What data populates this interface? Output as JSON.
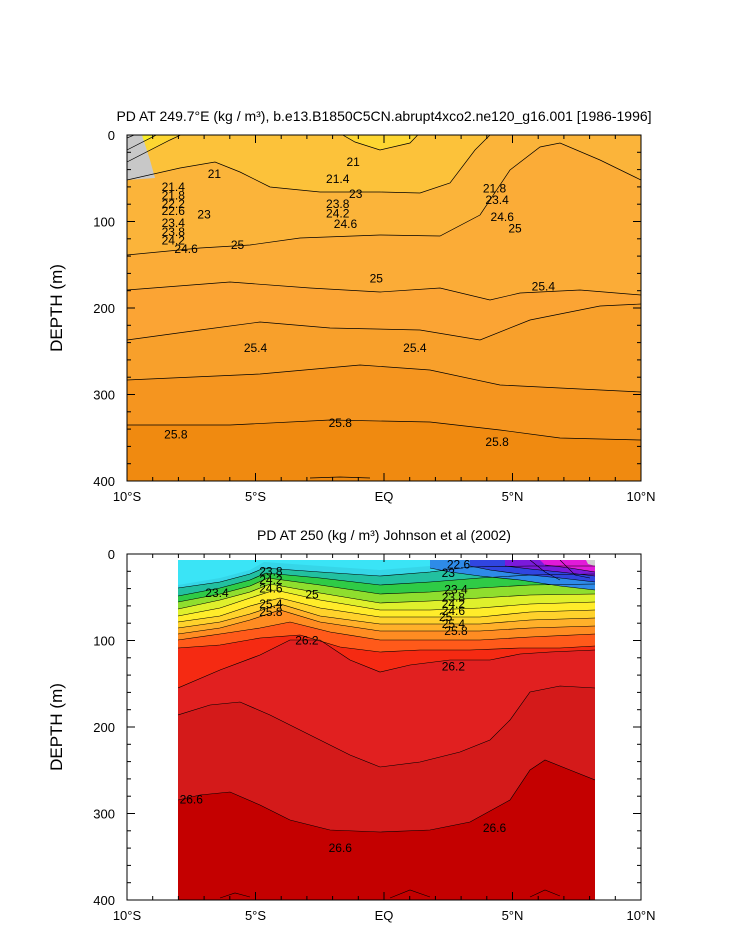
{
  "chart_data": [
    {
      "type": "contour",
      "title": "PD AT 249.7°E (kg / m³), b.e13.B1850C5CN.abrupt4xco2.ne120_g16.001 [1986-1996]",
      "xlabel": "",
      "ylabel": "DEPTH (m)",
      "xlim": [
        -10,
        10
      ],
      "ylim": [
        0,
        400
      ],
      "xticks": [
        -10,
        -5,
        0,
        5,
        10
      ],
      "xticklabels": [
        "10°S",
        "5°S",
        "EQ",
        "5°N",
        "10°N"
      ],
      "yticks": [
        0,
        100,
        200,
        300,
        400
      ],
      "yticklabels": [
        "0",
        "100",
        "200",
        "300",
        "400"
      ],
      "contour_levels": [
        21,
        21.4,
        21.8,
        22.2,
        22.6,
        23,
        23.4,
        23.8,
        24.2,
        24.6,
        25,
        25.4,
        25.8
      ],
      "contour_labels": [
        {
          "text": "21",
          "x": -6.6,
          "y": 45
        },
        {
          "text": "21",
          "x": -1.2,
          "y": 31
        },
        {
          "text": "21.4",
          "x": -8.2,
          "y": 60
        },
        {
          "text": "21.4",
          "x": -1.8,
          "y": 51
        },
        {
          "text": "21.8",
          "x": -8.2,
          "y": 70
        },
        {
          "text": "21.8",
          "x": 4.3,
          "y": 62
        },
        {
          "text": "22.2",
          "x": -8.2,
          "y": 80
        },
        {
          "text": "22.6",
          "x": -8.2,
          "y": 88
        },
        {
          "text": "23",
          "x": -7.0,
          "y": 92
        },
        {
          "text": "23",
          "x": -1.1,
          "y": 68
        },
        {
          "text": "23.4",
          "x": -8.2,
          "y": 102
        },
        {
          "text": "23.4",
          "x": 4.4,
          "y": 75
        },
        {
          "text": "23.8",
          "x": -8.2,
          "y": 112
        },
        {
          "text": "23.8",
          "x": -1.8,
          "y": 80
        },
        {
          "text": "24.2",
          "x": -8.2,
          "y": 122
        },
        {
          "text": "24.2",
          "x": -1.8,
          "y": 91
        },
        {
          "text": "24.6",
          "x": -7.7,
          "y": 132
        },
        {
          "text": "24.6",
          "x": -1.5,
          "y": 103
        },
        {
          "text": "24.6",
          "x": 4.6,
          "y": 95
        },
        {
          "text": "25",
          "x": -5.7,
          "y": 127
        },
        {
          "text": "25",
          "x": -0.3,
          "y": 166
        },
        {
          "text": "25",
          "x": 5.1,
          "y": 108
        },
        {
          "text": "25.4",
          "x": 6.2,
          "y": 175
        },
        {
          "text": "25.4",
          "x": -5.0,
          "y": 246
        },
        {
          "text": "25.4",
          "x": 1.2,
          "y": 246
        },
        {
          "text": "25.8",
          "x": -8.1,
          "y": 346
        },
        {
          "text": "25.8",
          "x": -1.7,
          "y": 333
        },
        {
          "text": "25.8",
          "x": 4.4,
          "y": 355
        }
      ]
    },
    {
      "type": "contour",
      "title": "PD AT 250 (kg / m³) Johnson et al (2002)",
      "xlabel": "",
      "ylabel": "DEPTH (m)",
      "xlim": [
        -10,
        10
      ],
      "ylim": [
        0,
        400
      ],
      "data_xrange": [
        -8,
        8.2
      ],
      "xticks": [
        -10,
        -5,
        0,
        5,
        10
      ],
      "xticklabels": [
        "10°S",
        "5°S",
        "EQ",
        "5°N",
        "10°N"
      ],
      "yticks": [
        0,
        100,
        200,
        300,
        400
      ],
      "yticklabels": [
        "0",
        "100",
        "200",
        "300",
        "400"
      ],
      "contour_levels": [
        22.6,
        23,
        23.4,
        23.8,
        24.2,
        24.6,
        25,
        25.4,
        25.8,
        26.2,
        26.6
      ],
      "contour_labels": [
        {
          "text": "23.4",
          "x": -6.5,
          "y": 45
        },
        {
          "text": "23.8",
          "x": -4.4,
          "y": 20
        },
        {
          "text": "24.2",
          "x": -4.4,
          "y": 30
        },
        {
          "text": "24.6",
          "x": -4.4,
          "y": 40
        },
        {
          "text": "25",
          "x": -2.8,
          "y": 47
        },
        {
          "text": "25.4",
          "x": -4.4,
          "y": 58
        },
        {
          "text": "25.8",
          "x": -4.4,
          "y": 67
        },
        {
          "text": "26.2",
          "x": -3.0,
          "y": 100
        },
        {
          "text": "22.6",
          "x": 2.9,
          "y": 12
        },
        {
          "text": "23",
          "x": 2.5,
          "y": 22
        },
        {
          "text": "23.4",
          "x": 2.8,
          "y": 41
        },
        {
          "text": "23.8",
          "x": 2.7,
          "y": 50
        },
        {
          "text": "24.2",
          "x": 2.7,
          "y": 58
        },
        {
          "text": "24.6",
          "x": 2.7,
          "y": 66
        },
        {
          "text": "25",
          "x": 2.4,
          "y": 73
        },
        {
          "text": "25.4",
          "x": 2.7,
          "y": 81
        },
        {
          "text": "25.8",
          "x": 2.8,
          "y": 89
        },
        {
          "text": "26.2",
          "x": 2.7,
          "y": 130
        },
        {
          "text": "26.6",
          "x": -7.5,
          "y": 284
        },
        {
          "text": "26.6",
          "x": -1.7,
          "y": 340
        },
        {
          "text": "26.6",
          "x": 4.3,
          "y": 317
        }
      ]
    }
  ]
}
